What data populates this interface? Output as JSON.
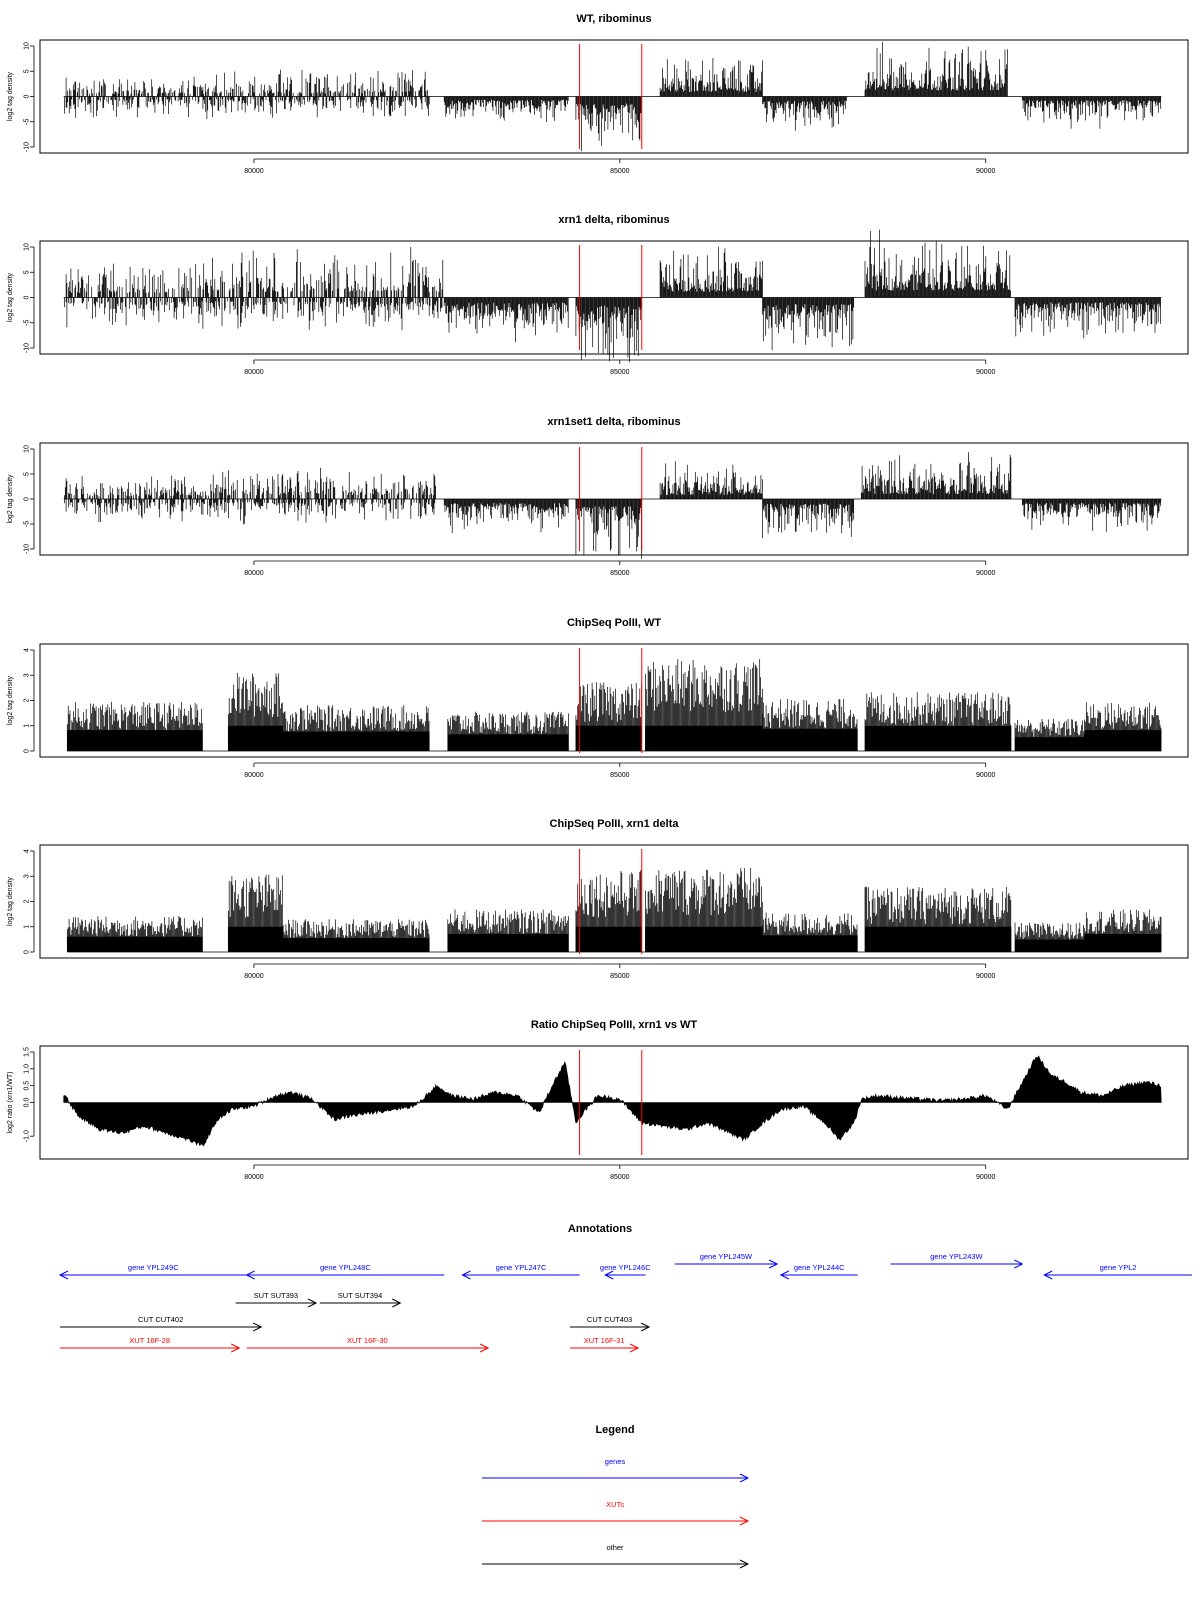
{
  "chart_data": [
    {
      "type": "bar",
      "title": "WT, ribominus",
      "ylabel": "log2 tag density",
      "ylim": [
        -10,
        10
      ],
      "yticks": [
        -10,
        -5,
        0,
        5,
        10
      ],
      "xlim": [
        77350,
        92450
      ],
      "xticks": [
        80000,
        85000,
        90000
      ],
      "markers_x": [
        84450,
        85300
      ],
      "segments": [
        {
          "start": 77400,
          "end": 79400,
          "kind": "mixed",
          "pos": 2.0,
          "neg": 2.3
        },
        {
          "start": 79400,
          "end": 82400,
          "kind": "mixed",
          "pos": 2.4,
          "neg": 2.2
        },
        {
          "start": 82600,
          "end": 84300,
          "kind": "neg",
          "amp": 2.6
        },
        {
          "start": 84400,
          "end": 85300,
          "kind": "neg",
          "amp": 5.5
        },
        {
          "start": 85550,
          "end": 86950,
          "kind": "pos",
          "amp": 3.5
        },
        {
          "start": 86950,
          "end": 88100,
          "kind": "neg",
          "amp": 3.3
        },
        {
          "start": 88350,
          "end": 90300,
          "kind": "pos",
          "amp": 4.8
        },
        {
          "start": 90500,
          "end": 92400,
          "kind": "neg",
          "amp": 3.0
        }
      ]
    },
    {
      "type": "bar",
      "title": "xrn1 delta, ribominus",
      "ylabel": "log2 tag density",
      "ylim": [
        -10,
        10
      ],
      "yticks": [
        -10,
        -5,
        0,
        5,
        10
      ],
      "xlim": [
        77350,
        92450
      ],
      "xticks": [
        80000,
        85000,
        90000
      ],
      "markers_x": [
        84450,
        85300
      ],
      "segments": [
        {
          "start": 77400,
          "end": 79400,
          "kind": "mixed",
          "pos": 3.4,
          "neg": 3.0
        },
        {
          "start": 79400,
          "end": 82600,
          "kind": "mixed",
          "pos": 4.5,
          "neg": 3.0
        },
        {
          "start": 82600,
          "end": 84300,
          "kind": "neg",
          "amp": 4.0
        },
        {
          "start": 84400,
          "end": 85300,
          "kind": "neg",
          "amp": 6.5
        },
        {
          "start": 85550,
          "end": 86950,
          "kind": "pos",
          "amp": 4.5
        },
        {
          "start": 86950,
          "end": 88200,
          "kind": "neg",
          "amp": 5.2
        },
        {
          "start": 88350,
          "end": 90350,
          "kind": "pos",
          "amp": 5.6
        },
        {
          "start": 90400,
          "end": 92400,
          "kind": "neg",
          "amp": 3.8
        }
      ]
    },
    {
      "type": "bar",
      "title": "xrn1set1 delta, ribominus",
      "ylabel": "log2 tag density",
      "ylim": [
        -10,
        10
      ],
      "yticks": [
        -10,
        -5,
        0,
        5,
        10
      ],
      "xlim": [
        77350,
        92450
      ],
      "xticks": [
        80000,
        85000,
        90000
      ],
      "markers_x": [
        84450,
        85300
      ],
      "segments": [
        {
          "start": 77400,
          "end": 79400,
          "kind": "mixed",
          "pos": 2.2,
          "neg": 2.4
        },
        {
          "start": 79400,
          "end": 82500,
          "kind": "mixed",
          "pos": 3.0,
          "neg": 2.5
        },
        {
          "start": 82600,
          "end": 84300,
          "kind": "neg",
          "amp": 3.2
        },
        {
          "start": 84400,
          "end": 85300,
          "kind": "neg",
          "amp": 6.0
        },
        {
          "start": 85550,
          "end": 86950,
          "kind": "pos",
          "amp": 3.2
        },
        {
          "start": 86950,
          "end": 88200,
          "kind": "neg",
          "amp": 3.8
        },
        {
          "start": 88300,
          "end": 90350,
          "kind": "pos",
          "amp": 4.0
        },
        {
          "start": 90500,
          "end": 92400,
          "kind": "neg",
          "amp": 3.2
        }
      ]
    },
    {
      "type": "bar",
      "title": "ChipSeq PolII, WT",
      "ylabel": "log2 tag density",
      "ylim": [
        0,
        4
      ],
      "yticks": [
        0,
        1,
        2,
        3,
        4
      ],
      "xlim": [
        77350,
        92450
      ],
      "xticks": [
        80000,
        85000,
        90000
      ],
      "markers_x": [
        84450,
        85300
      ],
      "baseline": 0,
      "segments": [
        {
          "start": 77450,
          "end": 79300,
          "level": 1.5
        },
        {
          "start": 79650,
          "end": 80400,
          "level": 2.4
        },
        {
          "start": 80400,
          "end": 82400,
          "level": 1.4
        },
        {
          "start": 82650,
          "end": 84300,
          "level": 1.2
        },
        {
          "start": 84400,
          "end": 85300,
          "level": 2.1
        },
        {
          "start": 85350,
          "end": 86950,
          "level": 2.8
        },
        {
          "start": 86950,
          "end": 88250,
          "level": 1.6
        },
        {
          "start": 88350,
          "end": 90350,
          "level": 1.8
        },
        {
          "start": 90400,
          "end": 91350,
          "level": 1.0
        },
        {
          "start": 91350,
          "end": 92400,
          "level": 1.5
        }
      ]
    },
    {
      "type": "bar",
      "title": "ChipSeq PolII, xrn1 delta",
      "ylabel": "log2 tag density",
      "ylim": [
        0,
        4
      ],
      "yticks": [
        0,
        1,
        2,
        3,
        4
      ],
      "xlim": [
        77350,
        92450
      ],
      "xticks": [
        80000,
        85000,
        90000
      ],
      "markers_x": [
        84450,
        85300
      ],
      "baseline": 0,
      "segments": [
        {
          "start": 77450,
          "end": 79300,
          "level": 1.1
        },
        {
          "start": 79650,
          "end": 80400,
          "level": 2.4
        },
        {
          "start": 80400,
          "end": 82400,
          "level": 1.0
        },
        {
          "start": 82650,
          "end": 84300,
          "level": 1.3
        },
        {
          "start": 84400,
          "end": 85300,
          "level": 2.5
        },
        {
          "start": 85350,
          "end": 86950,
          "level": 2.6
        },
        {
          "start": 86950,
          "end": 88250,
          "level": 1.2
        },
        {
          "start": 88350,
          "end": 90350,
          "level": 2.0
        },
        {
          "start": 90400,
          "end": 91350,
          "level": 0.9
        },
        {
          "start": 91350,
          "end": 92400,
          "level": 1.3
        }
      ]
    },
    {
      "type": "area",
      "title": "Ratio ChipSeq PolII, xrn1 vs WT",
      "ylabel": "log2 ratio (xrn1/WT)",
      "ylim": [
        -1.5,
        1.5
      ],
      "yticks": [
        -1.0,
        0.0,
        0.5,
        1.0,
        1.5
      ],
      "ytick_labels": [
        "-1.0",
        "0.0",
        "0.5",
        "1.0",
        "1.5"
      ],
      "xlim": [
        77350,
        92450
      ],
      "xticks": [
        80000,
        85000,
        90000
      ],
      "markers_x": [
        84450,
        85300
      ],
      "curve_x": [
        77400,
        77600,
        77900,
        78200,
        78500,
        78800,
        79100,
        79300,
        79500,
        79700,
        80000,
        80300,
        80500,
        80800,
        81100,
        81300,
        81600,
        81900,
        82200,
        82500,
        82700,
        83000,
        83300,
        83600,
        83900,
        84100,
        84250,
        84400,
        84500,
        84700,
        85000,
        85300,
        85600,
        85900,
        86200,
        86500,
        86700,
        86900,
        87200,
        87500,
        87800,
        88000,
        88200,
        88300,
        88500,
        88800,
        89100,
        89400,
        89700,
        90000,
        90300,
        90500,
        90700,
        90900,
        91100,
        91300,
        91600,
        91900,
        92200,
        92400
      ],
      "curve_y": [
        0.25,
        -0.4,
        -0.8,
        -0.9,
        -0.7,
        -0.9,
        -1.1,
        -1.3,
        -0.5,
        -0.2,
        -0.1,
        0.2,
        0.3,
        0.1,
        -0.5,
        -0.4,
        -0.3,
        -0.2,
        -0.1,
        0.5,
        0.2,
        0.1,
        0.3,
        0.2,
        -0.3,
        0.6,
        1.2,
        -0.6,
        -0.3,
        0.2,
        0.1,
        -0.6,
        -0.7,
        -0.8,
        -0.6,
        -0.9,
        -1.1,
        -0.7,
        -0.2,
        -0.1,
        -0.6,
        -1.1,
        -0.6,
        0.1,
        0.2,
        0.15,
        0.1,
        0.05,
        0.1,
        0.2,
        -0.2,
        0.6,
        1.4,
        0.8,
        0.6,
        0.3,
        0.2,
        0.5,
        0.6,
        0.5
      ]
    }
  ],
  "annotations": {
    "title": "Annotations",
    "items": [
      {
        "label": "gene YPL249C",
        "start": 77350,
        "end": 79900,
        "dir": "left",
        "row": 1,
        "color": "#0000ff"
      },
      {
        "label": "gene YPL248C",
        "start": 79900,
        "end": 82600,
        "dir": "left",
        "row": 1,
        "color": "#0000ff"
      },
      {
        "label": "gene YPL247C",
        "start": 82850,
        "end": 84450,
        "dir": "left",
        "row": 1,
        "color": "#0000ff"
      },
      {
        "label": "gene YPL246C",
        "start": 84800,
        "end": 85350,
        "dir": "left",
        "row": 1,
        "color": "#0000ff"
      },
      {
        "label": "gene YPL245W",
        "start": 85750,
        "end": 87150,
        "dir": "right",
        "row": 0,
        "color": "#0000ff"
      },
      {
        "label": "gene YPL244C",
        "start": 87200,
        "end": 88250,
        "dir": "left",
        "row": 1,
        "color": "#0000ff"
      },
      {
        "label": "gene YPL243W",
        "start": 88700,
        "end": 90500,
        "dir": "right",
        "row": 0,
        "color": "#0000ff"
      },
      {
        "label": "gene YPL2",
        "start": 90800,
        "end": 93600,
        "dir": "left",
        "row": 1,
        "color": "#0000ff"
      },
      {
        "label": "SUT SUT393",
        "start": 79750,
        "end": 80850,
        "dir": "right",
        "row": 2,
        "color": "#000000"
      },
      {
        "label": "SUT SUT394",
        "start": 80900,
        "end": 82000,
        "dir": "right",
        "row": 2,
        "color": "#000000"
      },
      {
        "label": "CUT CUT402",
        "start": 77350,
        "end": 80100,
        "dir": "right",
        "row": 3,
        "color": "#000000"
      },
      {
        "label": "CUT CUT403",
        "start": 84320,
        "end": 85400,
        "dir": "right",
        "row": 3,
        "color": "#000000"
      },
      {
        "label": "XUT 16F-28",
        "start": 77350,
        "end": 79800,
        "dir": "right",
        "row": 4,
        "color": "#ff0000"
      },
      {
        "label": "XUT 16F-30",
        "start": 79900,
        "end": 83200,
        "dir": "right",
        "row": 4,
        "color": "#ff0000"
      },
      {
        "label": "XUT 16F-31",
        "start": 84320,
        "end": 85250,
        "dir": "right",
        "row": 4,
        "color": "#ff0000"
      }
    ]
  },
  "legend": {
    "title": "Legend",
    "items": [
      {
        "label": "genes",
        "color": "#0000ff"
      },
      {
        "label": "XUTs",
        "color": "#ff0000"
      },
      {
        "label": "other",
        "color": "#000000"
      }
    ]
  },
  "colors": {
    "marker": "#ff0000",
    "bars": "#000000",
    "frame": "#000000"
  }
}
